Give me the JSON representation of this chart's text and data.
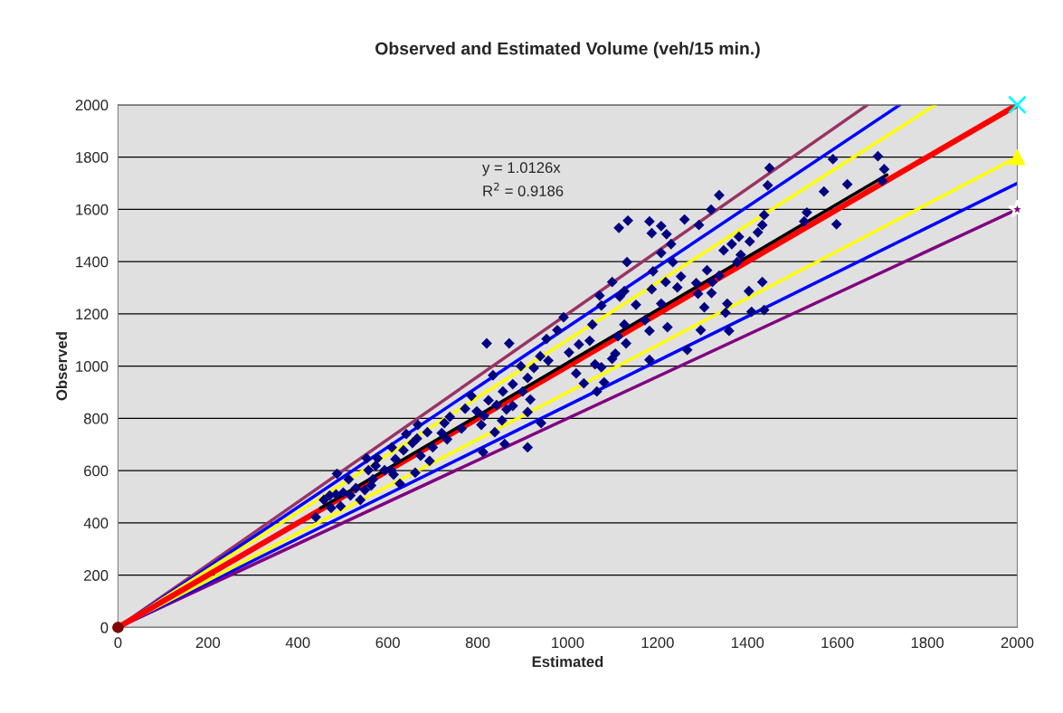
{
  "chart_data": {
    "type": "scatter",
    "title": "Observed and Estimated Volume (veh/15 min.)",
    "xlabel": "Estimated",
    "ylabel": "Observed",
    "annotations": [
      "y = 1.0126x",
      "R$^{2}$ = 0.9186"
    ],
    "xlim": [
      0,
      2000
    ],
    "xticks": [
      0,
      200,
      400,
      600,
      800,
      1000,
      1200,
      1400,
      1600,
      1800,
      2000
    ],
    "ylim": [
      0,
      2000
    ],
    "yticks": [
      0,
      200,
      400,
      600,
      800,
      1000,
      1200,
      1400,
      1600,
      1800,
      2000
    ],
    "grid": "y",
    "legend": false,
    "series": [
      {
        "type": "line",
        "color": "#993366",
        "marker": "none",
        "x": [
          0,
          1667
        ],
        "values": [
          0,
          2000
        ]
      },
      {
        "type": "line",
        "color": "#800080",
        "marker": "none",
        "x": [
          0,
          2000
        ],
        "values": [
          0,
          1600
        ]
      },
      {
        "type": "line",
        "color": "#0000ff",
        "marker": "none",
        "x": [
          0,
          1739
        ],
        "values": [
          0,
          2000
        ]
      },
      {
        "type": "line",
        "color": "#0000ff",
        "marker": "none",
        "x": [
          0,
          2000
        ],
        "values": [
          0,
          1700
        ]
      },
      {
        "type": "line",
        "color": "#ffff00",
        "marker": "none",
        "x": [
          0,
          1818
        ],
        "values": [
          0,
          2000
        ]
      },
      {
        "type": "line",
        "color": "#ffff00",
        "marker": "none",
        "x": [
          0,
          2000
        ],
        "values": [
          0,
          1800
        ]
      },
      {
        "type": "line",
        "color": "#ff0000",
        "marker": "none",
        "x": [
          0,
          2000
        ],
        "values": [
          0,
          2000
        ]
      },
      {
        "color": "#000080",
        "marker": "diamond",
        "x": [
          1449,
          1590,
          1690,
          1704,
          1700,
          1622,
          1445,
          1337,
          1319,
          1260,
          1208,
          1182,
          1134,
          1187,
          1220,
          1114,
          1292,
          1570,
          1598,
          1532,
          1526,
          1437,
          1433,
          1405,
          1423,
          1381,
          1365,
          1385,
          1347,
          1377,
          1403,
          1433,
          1437,
          1409,
          1355,
          1351,
          1359,
          1296,
          1266,
          1320,
          1322,
          1337,
          1310,
          1286,
          1290,
          1304,
          1244,
          1252,
          1234,
          1208,
          1230,
          1190,
          1187,
          1208,
          1222,
          1218,
          1152,
          1172,
          1182,
          1126,
          1116,
          1126,
          1099,
          1071,
          1075,
          1132,
          1182,
          1112,
          1130,
          1099,
          1061,
          1075,
          1081,
          1065,
          1019,
          1036,
          1003,
          1025,
          977,
          991,
          1049,
          1055,
          1106,
          957,
          939,
          953,
          925,
          911,
          896,
          878,
          900,
          917,
          941,
          911,
          878,
          856,
          842,
          824,
          820,
          870,
          864,
          808,
          812,
          911,
          834,
          786,
          772,
          764,
          814,
          854,
          860,
          838,
          798,
          738,
          732,
          720,
          726,
          688,
          665,
          673,
          700,
          667,
          655,
          635,
          617,
          609,
          641,
          577,
          593,
          567,
          573,
          607,
          557,
          549,
          563,
          529,
          517,
          513,
          501,
          485,
          495,
          539,
          471,
          458,
          474,
          440,
          487,
          553,
          627,
          661,
          613,
          693
        ],
        "values": [
          1758,
          1792,
          1803,
          1754,
          1709,
          1696,
          1692,
          1654,
          1599,
          1561,
          1536,
          1554,
          1557,
          1509,
          1505,
          1529,
          1540,
          1668,
          1543,
          1588,
          1554,
          1578,
          1540,
          1477,
          1512,
          1495,
          1467,
          1426,
          1443,
          1398,
          1287,
          1322,
          1215,
          1208,
          1239,
          1204,
          1135,
          1138,
          1062,
          1280,
          1322,
          1346,
          1367,
          1318,
          1277,
          1225,
          1301,
          1343,
          1398,
          1433,
          1467,
          1363,
          1294,
          1239,
          1149,
          1322,
          1235,
          1176,
          1135,
          1159,
          1266,
          1287,
          1322,
          1270,
          1232,
          1398,
          1024,
          1114,
          1087,
          1028,
          1007,
          996,
          938,
          903,
          972,
          934,
          1052,
          1083,
          1138,
          1187,
          1097,
          1159,
          1048,
          1021,
          1038,
          1104,
          993,
          955,
          1000,
          931,
          903,
          872,
          782,
          824,
          848,
          903,
          851,
          869,
          1087,
          1087,
          834,
          775,
          671,
          689,
          965,
          886,
          837,
          761,
          810,
          792,
          702,
          747,
          827,
          806,
          720,
          744,
          782,
          747,
          723,
          657,
          689,
          775,
          706,
          678,
          644,
          689,
          740,
          647,
          602,
          567,
          619,
          602,
          602,
          526,
          543,
          533,
          505,
          567,
          516,
          509,
          464,
          488,
          505,
          488,
          457,
          422,
          588,
          647,
          550,
          592,
          585,
          637
        ]
      },
      {
        "type": "line",
        "color": "#000000",
        "marker": "none",
        "x": [
          450,
          1710
        ],
        "values": [
          456,
          1732
        ]
      },
      {
        "color": "#800000",
        "marker": "circle",
        "x": [
          0
        ],
        "values": [
          0
        ]
      },
      {
        "color": "#00ffff",
        "marker": "cross",
        "x": [
          2000
        ],
        "values": [
          2000
        ]
      },
      {
        "color": "#ffff00",
        "marker": "triangle",
        "x": [
          2000
        ],
        "values": [
          1800
        ]
      },
      {
        "color": "#800080",
        "marker": "star",
        "x": [
          2000
        ],
        "values": [
          1600
        ]
      }
    ]
  }
}
